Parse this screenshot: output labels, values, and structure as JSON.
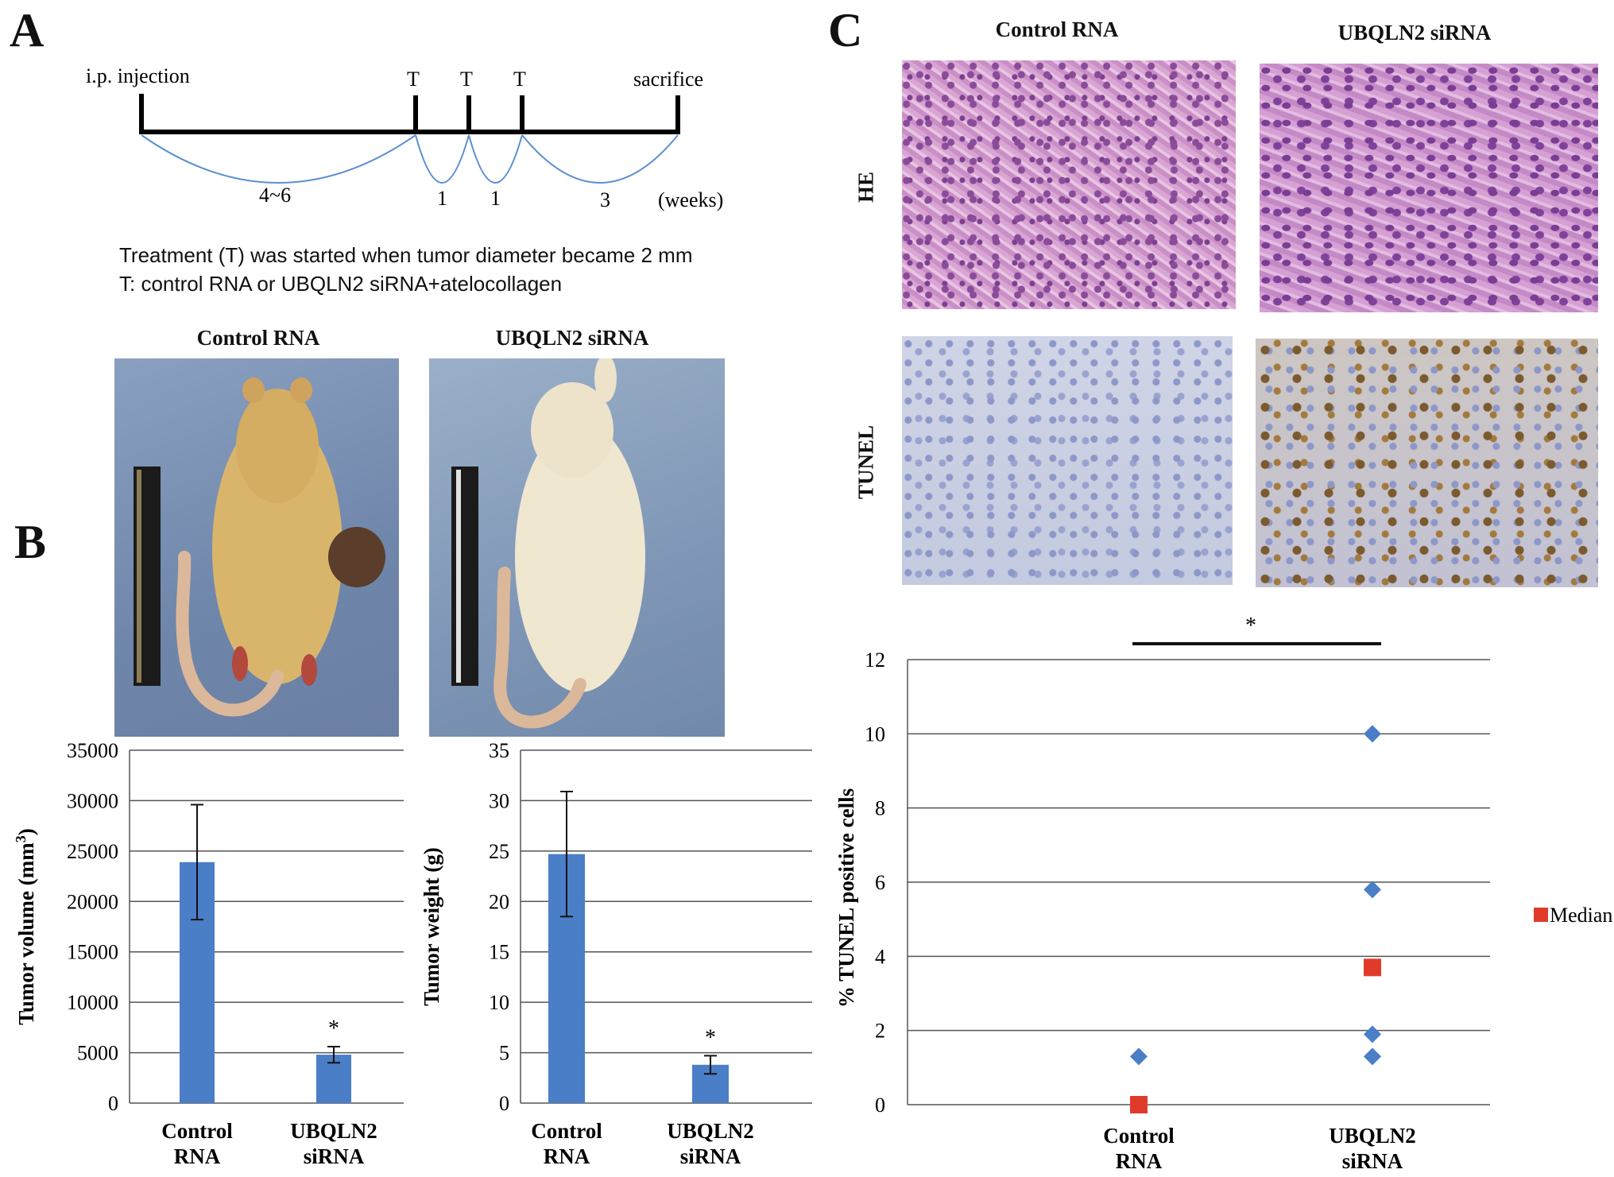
{
  "panels": {
    "a": "A",
    "b": "B",
    "c": "C"
  },
  "timeline": {
    "injection_label": "i.p. injection",
    "t_labels": [
      "T",
      "T",
      "T"
    ],
    "sacrifice_label": "sacrifice",
    "intervals": [
      "4~6",
      "1",
      "1",
      "3"
    ],
    "unit_label": "(weeks)",
    "note_line1": "Treatment (T) was started when tumor diameter became 2 mm",
    "note_line2": "T: control RNA or UBQLN2 siRNA+atelocollagen"
  },
  "photos_a": {
    "left_title": "Control RNA",
    "right_title": "UBQLN2 siRNA"
  },
  "photos_c": {
    "col_titles": [
      "Control RNA",
      "UBQLN2 siRNA"
    ],
    "row_labels": [
      "HE",
      "TUNEL"
    ]
  },
  "colors": {
    "bar": "#4a7ec7",
    "diamond": "#4a7ec7",
    "median": "#e03b2a",
    "he": "#c98fc6",
    "tunel_bg": "#c9cfe4"
  },
  "chart_data": [
    {
      "type": "bar",
      "categories": [
        [
          "Control",
          "RNA"
        ],
        [
          "UBQLN2",
          "siRNA"
        ]
      ],
      "values": [
        23900,
        4800
      ],
      "errors": [
        5700,
        800
      ],
      "significance": [
        "",
        "*"
      ],
      "ylabel": "Tumor volume (mm",
      "ylabel_sup": "3",
      "ylabel_close": ")",
      "ylim": [
        0,
        35000
      ],
      "yticks": [
        "0",
        "5000",
        "10000",
        "15000",
        "20000",
        "25000",
        "30000",
        "35000"
      ],
      "grid": true
    },
    {
      "type": "bar",
      "categories": [
        [
          "Control",
          "RNA"
        ],
        [
          "UBQLN2",
          "siRNA"
        ]
      ],
      "values": [
        24.7,
        3.8
      ],
      "errors": [
        6.2,
        0.9
      ],
      "significance": [
        "",
        "*"
      ],
      "ylabel": "Tumor weight (g)",
      "ylim": [
        0,
        35
      ],
      "yticks": [
        "0",
        "5",
        "10",
        "15",
        "20",
        "25",
        "30",
        "35"
      ],
      "grid": true
    },
    {
      "type": "scatter",
      "categories": [
        [
          "Control",
          "RNA"
        ],
        [
          "UBQLN2",
          "siRNA"
        ]
      ],
      "points": [
        {
          "group": 0,
          "y": 1.3
        },
        {
          "group": 1,
          "y": 10.0
        },
        {
          "group": 1,
          "y": 5.8
        },
        {
          "group": 1,
          "y": 1.9
        },
        {
          "group": 1,
          "y": 1.3
        }
      ],
      "medians": [
        0,
        3.7
      ],
      "legend": "Median",
      "legend_position": "right",
      "significance": "*",
      "ylabel": "% TUNEL positive cells",
      "ylim": [
        0,
        12
      ],
      "yticks": [
        "0",
        "2",
        "4",
        "6",
        "8",
        "10",
        "12"
      ],
      "grid": true
    }
  ]
}
